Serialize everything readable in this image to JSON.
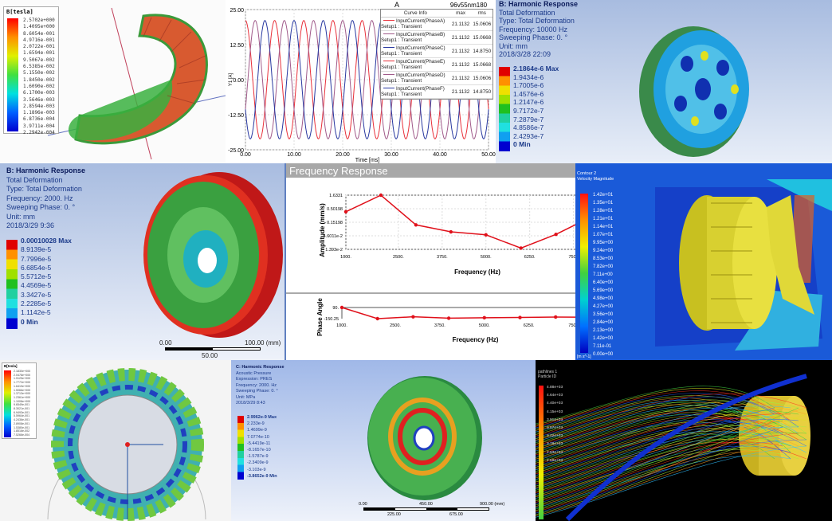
{
  "panel_magnetic": {
    "legend_title": "B[tesla]",
    "legend_values": [
      "2.5702e+000",
      "1.4095e+000",
      "8.6054e-001",
      "4.9716e-001",
      "2.0722e-001",
      "1.6594e-001",
      "9.5067e-002",
      "6.5385e-002",
      "5.1550e-002",
      "1.8450e-002",
      "1.6090e-002",
      "6.1700e-003",
      "3.5646e-003",
      "2.8594e-003",
      "1.1896e-003",
      "6.8736e-004",
      "3.9711e-004",
      "2.2942e-004"
    ]
  },
  "panel_current": {
    "title": "A",
    "design_label": "96v55nm180",
    "ylabel": "Y1 [A]",
    "xlabel": "Time [ms]",
    "legend_headers": [
      "Curve Info",
      "max",
      "rms"
    ],
    "legend_rows": [
      {
        "name": "InputCurrent(PhaseA)",
        "setup": "Setup1 : Transient",
        "max": "21.1132",
        "rms": "15.0606",
        "color": "#e8303a"
      },
      {
        "name": "InputCurrent(PhaseB)",
        "setup": "Setup1 : Transient",
        "max": "21.1132",
        "rms": "15.0668",
        "color": "#a05a8a"
      },
      {
        "name": "InputCurrent(PhaseC)",
        "setup": "Setup1 : Transient",
        "max": "21.1132",
        "rms": "14.8750",
        "color": "#2838a0"
      },
      {
        "name": "InputCurrent(PhaseE)",
        "setup": "Setup1 : Transient",
        "max": "21.1132",
        "rms": "15.0668",
        "color": "#e8303a"
      },
      {
        "name": "InputCurrent(PhaseD)",
        "setup": "Setup1 : Transient",
        "max": "21.1132",
        "rms": "15.0606",
        "color": "#a05a8a"
      },
      {
        "name": "InputCurrent(PhaseF)",
        "setup": "Setup1 : Transient",
        "max": "21.1132",
        "rms": "14.8750",
        "color": "#2838a0"
      }
    ]
  },
  "chart_data": [
    {
      "type": "line",
      "title": "A",
      "xlabel": "Time [ms]",
      "ylabel": "Y1 [A]",
      "xlim": [
        0,
        50
      ],
      "ylim": [
        -25,
        25
      ],
      "xticks": [
        "0.00",
        "10.00",
        "20.00",
        "30.00",
        "40.00",
        "50.00"
      ],
      "yticks": [
        "25.00",
        "12.50",
        "0.00",
        "-12.50",
        "-25.00"
      ],
      "series": [
        {
          "name": "InputCurrent(PhaseA)",
          "amplitude": 21.1132,
          "period_ms": 6,
          "phase_deg": 0
        },
        {
          "name": "InputCurrent(PhaseB)",
          "amplitude": 21.1132,
          "period_ms": 6,
          "phase_deg": -120
        },
        {
          "name": "InputCurrent(PhaseC)",
          "amplitude": 21.1132,
          "period_ms": 6,
          "phase_deg": 120
        }
      ],
      "grid": true,
      "legend_placement": "top-right"
    },
    {
      "type": "line",
      "title": "Frequency Response",
      "xlabel": "Frequency (Hz)",
      "ylabel": "Amplitude (mm/s)",
      "yscale": "log",
      "xticks": [
        "1000.",
        "2500.",
        "3750.",
        "5000.",
        "6250.",
        "7500"
      ],
      "yticks": [
        "1.6331",
        "0.50198",
        "0.15198",
        "4.6011e-2",
        "1.393e-2"
      ],
      "x": [
        1000,
        2000,
        3000,
        4000,
        5000,
        6000,
        7000,
        7600
      ],
      "y": [
        0.38,
        1.6331,
        0.12,
        0.065,
        0.05,
        0.0155,
        0.052,
        0.13
      ],
      "color": "#e0101a",
      "grid": true
    },
    {
      "type": "line",
      "xlabel": "Frequency (Hz)",
      "ylabel": "Phase Angle",
      "ylim": [
        -150.25,
        90
      ],
      "xticks": [
        "1000.",
        "2500.",
        "3750.",
        "5000.",
        "6250.",
        "7500"
      ],
      "yticks": [
        "90.",
        "-150.25"
      ],
      "x": [
        1000,
        2000,
        3000,
        4000,
        5000,
        6000,
        7000,
        7600
      ],
      "y": [
        90,
        -150.25,
        -110,
        -140,
        -130,
        -125,
        -115,
        -118
      ],
      "color": "#e0101a"
    }
  ],
  "panel_harmonic_top": {
    "title": "B: Harmonic Response",
    "lines": [
      "Total Deformation",
      "Type: Total Deformation",
      "Frequency: 10000 Hz",
      "Sweeping Phase: 0. °",
      "Unit: mm",
      "2018/3/28 22:09"
    ],
    "legend": [
      "2.1864e-6 Max",
      "1.9434e-6",
      "1.7005e-6",
      "1.4576e-6",
      "1.2147e-6",
      "9.7172e-7",
      "7.2879e-7",
      "4.8586e-7",
      "2.4293e-7",
      "0 Min"
    ]
  },
  "panel_harmonic_mid": {
    "title": "B: Harmonic Response",
    "lines": [
      "Total Deformation",
      "Type: Total Deformation",
      "Frequency: 2000. Hz",
      "Sweeping Phase: 0. °",
      "Unit: mm",
      "2018/3/29 9:36"
    ],
    "legend": [
      "0.00010028 Max",
      "8.9139e-5",
      "7.7996e-5",
      "6.6854e-5",
      "5.5712e-5",
      "4.4569e-5",
      "3.3427e-5",
      "2.2285e-5",
      "1.1142e-5",
      "0 Min"
    ],
    "scale": {
      "left": "0.00",
      "right": "100.00 (mm)",
      "mid": "50.00"
    }
  },
  "panel_freq": {
    "header": "Frequency Response"
  },
  "panel_cfd": {
    "title": "Contour 2",
    "subtitle": "Velocity Magnitude",
    "legend": [
      "1.42e+01",
      "1.35e+01",
      "1.28e+01",
      "1.21e+01",
      "1.14e+01",
      "1.07e+01",
      "9.95e+00",
      "9.24e+00",
      "8.53e+00",
      "7.82e+00",
      "7.11e+00",
      "6.40e+00",
      "5.69e+00",
      "4.98e+00",
      "4.27e+00",
      "3.56e+00",
      "2.84e+00",
      "2.13e+00",
      "1.42e+00",
      "7.11e-01",
      "0.00e+00"
    ],
    "unit": "[m s^-1]"
  },
  "panel_ring": {
    "legend_title": "B[tesla]",
    "legend_values": [
      "2.1830e+000",
      "2.0478e+000",
      "1.9125e+000",
      "1.7772e+000",
      "1.6419e+000",
      "1.5066e+000",
      "1.3713e+000",
      "1.2361e+000",
      "1.1008e+000",
      "9.6549e-001",
      "8.3021e-001",
      "6.9493e-001",
      "5.5964e-001",
      "4.2436e-001",
      "2.8908e-001",
      "1.5380e-001",
      "1.8516e-002",
      "7.5266e-004"
    ]
  },
  "panel_acoustic": {
    "title": "C: Harmonic Response",
    "lines": [
      "Acoustic Pressure",
      "Expression: PRES",
      "Frequency: 2000. Hz",
      "Sweeping Phase: 0. °",
      "Unit: MPa",
      "2018/3/29 8:43"
    ],
    "legend": [
      "2.9962e-9 Max",
      "2.233e-9",
      "1.4699e-9",
      "7.0774e-10",
      "-5.4419e-11",
      "-8.1657e-10",
      "-1.5787e-9",
      "-2.3409e-9",
      "-3.103e-9",
      "-3.8652e-9 Min"
    ],
    "scale": {
      "left": "0.00",
      "right": "900.00 (mm)",
      "a": "225.00",
      "b": "675.00",
      "mid": "450.00"
    }
  },
  "panel_particles": {
    "title": "pathlines 1",
    "subtitle": "Particle ID",
    "legend": [
      "4.88e+03",
      "4.64e+03",
      "4.40e+03",
      "4.15e+03",
      "3.91e+03",
      "3.67e+03",
      "3.42e+03",
      "3.18e+03",
      "2.93e+03",
      "2.69e+03"
    ]
  }
}
